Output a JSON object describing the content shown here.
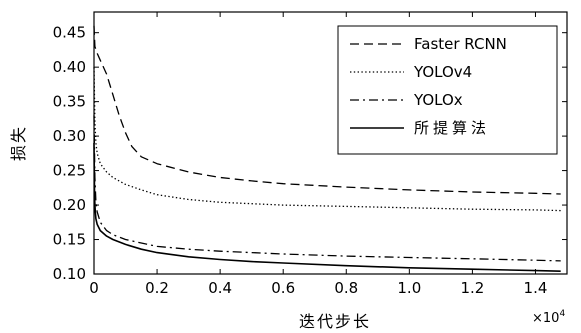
{
  "chart_data": {
    "type": "line",
    "title": "",
    "xlabel": "迭代步长",
    "ylabel": "损失",
    "x_multiplier": {
      "base": "×10",
      "exponent": "4"
    },
    "xlim": [
      0,
      1.5
    ],
    "ylim": [
      0.1,
      0.48
    ],
    "x_ticks": [
      0,
      0.2,
      0.4,
      0.6,
      0.8,
      1.0,
      1.2,
      1.4
    ],
    "x_tick_labels": [
      "0",
      "0.2",
      "0.4",
      "0.6",
      "0.8",
      "1.0",
      "1.2",
      "1.4"
    ],
    "y_ticks": [
      0.1,
      0.15,
      0.2,
      0.25,
      0.3,
      0.35,
      0.4,
      0.45
    ],
    "y_tick_labels": [
      "0.10",
      "0.15",
      "0.20",
      "0.25",
      "0.30",
      "0.35",
      "0.40",
      "0.45"
    ],
    "legend_position": "top-right",
    "grid": false,
    "series": [
      {
        "name": "Faster RCNN",
        "dash": "dashed",
        "x": [
          0,
          0.003,
          0.01,
          0.02,
          0.04,
          0.06,
          0.08,
          0.1,
          0.12,
          0.15,
          0.2,
          0.3,
          0.4,
          0.5,
          0.6,
          0.8,
          1.0,
          1.2,
          1.4,
          1.48
        ],
        "y": [
          0.46,
          0.43,
          0.42,
          0.41,
          0.39,
          0.36,
          0.33,
          0.305,
          0.285,
          0.27,
          0.26,
          0.248,
          0.24,
          0.235,
          0.231,
          0.226,
          0.222,
          0.219,
          0.217,
          0.216
        ]
      },
      {
        "name": "YOLOv4",
        "dash": "dotted",
        "x": [
          0,
          0.003,
          0.006,
          0.01,
          0.02,
          0.04,
          0.06,
          0.1,
          0.15,
          0.2,
          0.3,
          0.4,
          0.5,
          0.6,
          0.8,
          1.0,
          1.2,
          1.4,
          1.48
        ],
        "y": [
          0.4,
          0.32,
          0.29,
          0.275,
          0.26,
          0.248,
          0.24,
          0.23,
          0.222,
          0.215,
          0.208,
          0.204,
          0.202,
          0.2,
          0.198,
          0.196,
          0.194,
          0.193,
          0.192
        ]
      },
      {
        "name": "YOLOx",
        "dash": "dashdot",
        "x": [
          0,
          0.003,
          0.006,
          0.01,
          0.02,
          0.04,
          0.06,
          0.1,
          0.15,
          0.2,
          0.3,
          0.4,
          0.5,
          0.6,
          0.8,
          1.0,
          1.2,
          1.4,
          1.48
        ],
        "y": [
          0.33,
          0.24,
          0.205,
          0.19,
          0.175,
          0.163,
          0.157,
          0.15,
          0.145,
          0.14,
          0.136,
          0.133,
          0.131,
          0.129,
          0.126,
          0.124,
          0.122,
          0.12,
          0.119
        ]
      },
      {
        "name": "所提算法",
        "dash": "solid",
        "x": [
          0,
          0.002,
          0.004,
          0.006,
          0.01,
          0.02,
          0.04,
          0.06,
          0.1,
          0.15,
          0.2,
          0.3,
          0.4,
          0.5,
          0.6,
          0.8,
          1.0,
          1.2,
          1.4,
          1.48
        ],
        "y": [
          0.29,
          0.21,
          0.19,
          0.18,
          0.172,
          0.163,
          0.155,
          0.15,
          0.143,
          0.136,
          0.131,
          0.125,
          0.121,
          0.118,
          0.116,
          0.112,
          0.109,
          0.107,
          0.105,
          0.104
        ]
      }
    ]
  }
}
